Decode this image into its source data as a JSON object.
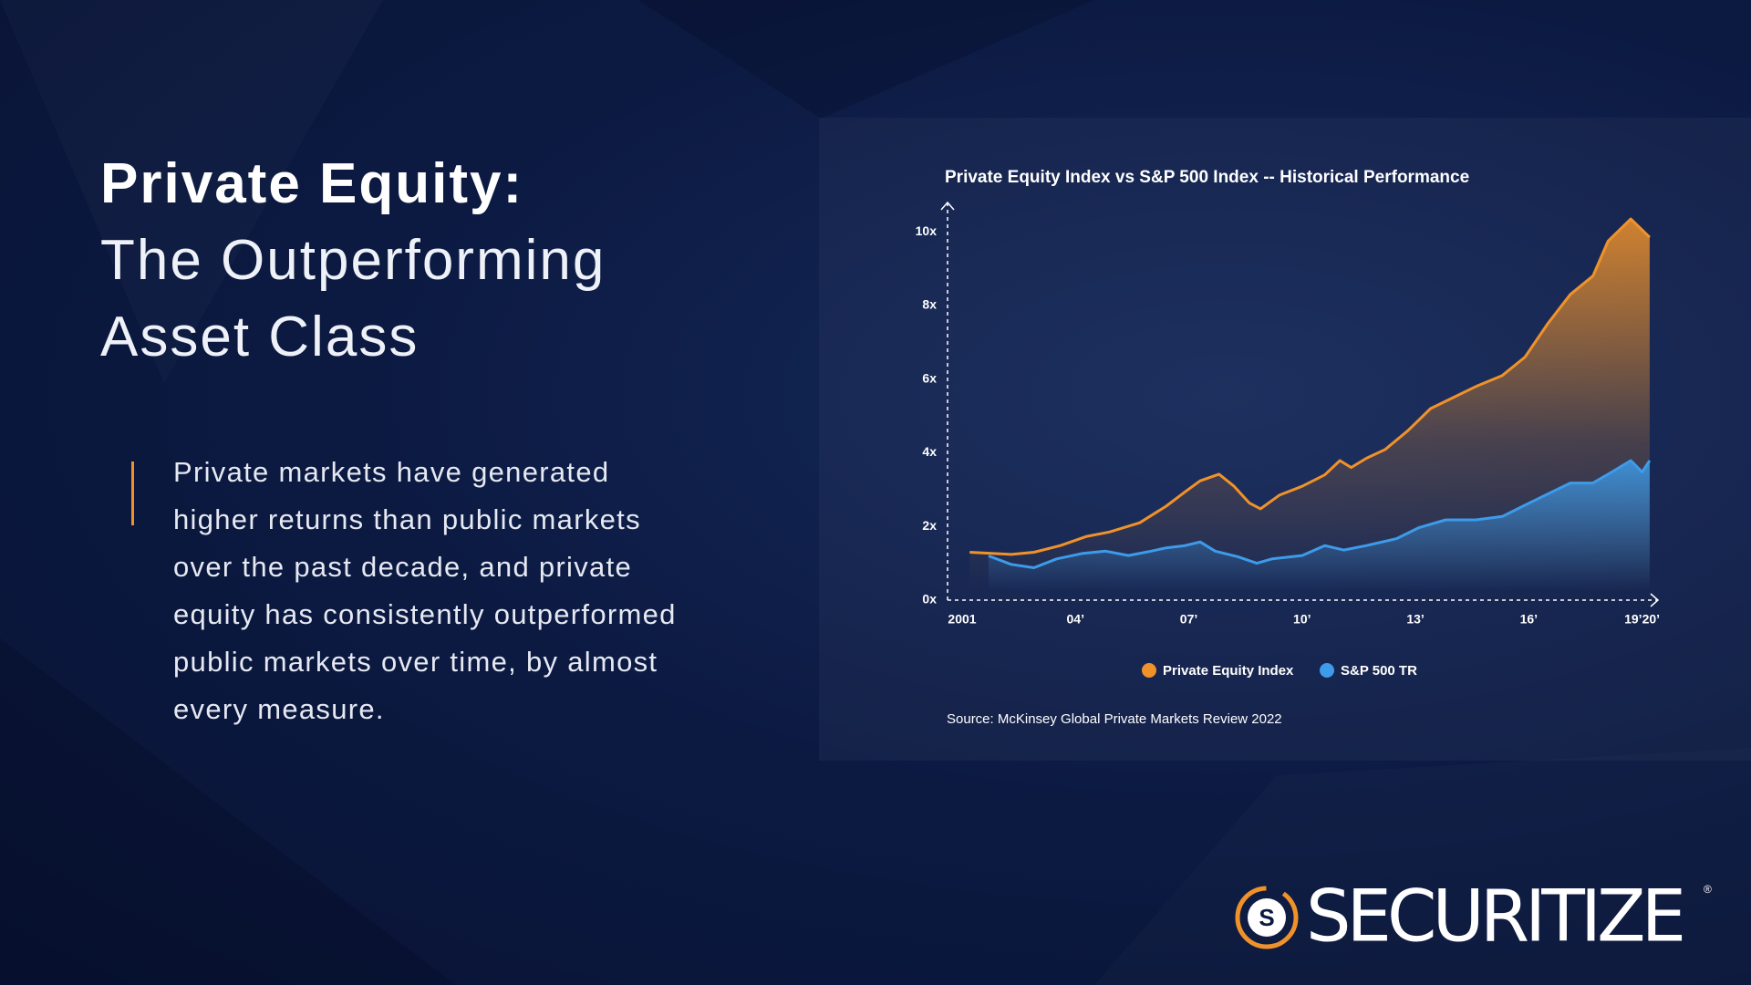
{
  "header": {
    "title_bold": "Private Equity:",
    "title_lines": [
      "The Outperforming",
      "Asset Class"
    ]
  },
  "body_lines": [
    "Private markets have generated",
    "higher returns than public markets",
    "over the past decade, and private",
    "equity has consistently outperformed",
    "public markets over time, by almost",
    "every measure."
  ],
  "brand": {
    "name": "SECURITIZE",
    "icon_letter": "S",
    "mark": "®"
  },
  "chart_data": {
    "type": "line",
    "title": "Private Equity Index vs S&P 500 Index -- Historical Performance",
    "source": "Source: McKinsey Global Private Markets Review 2022",
    "xlim": [
      2001,
      2020
    ],
    "xticks": [
      2001,
      {
        "value": 2004,
        "label": "04’"
      },
      {
        "value": 2007,
        "label": "07’"
      },
      {
        "value": 2010,
        "label": "10’"
      },
      {
        "value": 2013,
        "label": "13’"
      },
      {
        "value": 2016,
        "label": "16’"
      },
      {
        "value": 2019,
        "label": "19’20’"
      }
    ],
    "ylim": [
      0,
      10.5
    ],
    "yticks": [
      {
        "value": 0,
        "label": "0x"
      },
      {
        "value": 2,
        "label": "2x"
      },
      {
        "value": 4,
        "label": "4x"
      },
      {
        "value": 6,
        "label": "6x"
      },
      {
        "value": 8,
        "label": "8x"
      },
      {
        "value": 10,
        "label": "10x"
      }
    ],
    "series": [
      {
        "name": "Private Equity Index",
        "color": "#f0922a",
        "x": [
          2001.2,
          2002.3,
          2002.9,
          2003.6,
          2004.3,
          2004.9,
          2005.7,
          2006.4,
          2006.9,
          2007.3,
          2007.8,
          2008.2,
          2008.6,
          2008.9,
          2009.4,
          2010.0,
          2010.6,
          2011.0,
          2011.3,
          2011.7,
          2012.2,
          2012.8,
          2013.4,
          2014.0,
          2014.6,
          2015.3,
          2015.9,
          2016.5,
          2017.1,
          2017.7,
          2018.1,
          2018.7,
          2019.2
        ],
        "values": [
          1.3,
          1.24,
          1.3,
          1.48,
          1.73,
          1.85,
          2.1,
          2.55,
          2.94,
          3.24,
          3.42,
          3.09,
          2.64,
          2.48,
          2.85,
          3.09,
          3.4,
          3.79,
          3.6,
          3.85,
          4.09,
          4.6,
          5.2,
          5.5,
          5.8,
          6.1,
          6.6,
          7.5,
          8.3,
          8.8,
          9.75,
          10.35,
          9.85
        ]
      },
      {
        "name": "S&P 500 TR",
        "color": "#3d9be9",
        "x": [
          2001.7,
          2002.3,
          2002.9,
          2003.5,
          2004.2,
          2004.8,
          2005.4,
          2006.0,
          2006.4,
          2006.9,
          2007.3,
          2007.7,
          2008.3,
          2008.8,
          2009.2,
          2010.0,
          2010.6,
          2011.1,
          2011.7,
          2012.5,
          2013.1,
          2013.8,
          2014.6,
          2015.3,
          2015.9,
          2016.5,
          2017.1,
          2017.7,
          2018.2,
          2018.7,
          2019.0,
          2019.2
        ],
        "values": [
          1.2,
          0.97,
          0.88,
          1.12,
          1.27,
          1.33,
          1.21,
          1.33,
          1.42,
          1.48,
          1.58,
          1.33,
          1.18,
          1.0,
          1.12,
          1.21,
          1.48,
          1.36,
          1.48,
          1.67,
          1.97,
          2.18,
          2.18,
          2.27,
          2.58,
          2.88,
          3.18,
          3.18,
          3.48,
          3.79,
          3.48,
          3.79
        ]
      }
    ]
  }
}
